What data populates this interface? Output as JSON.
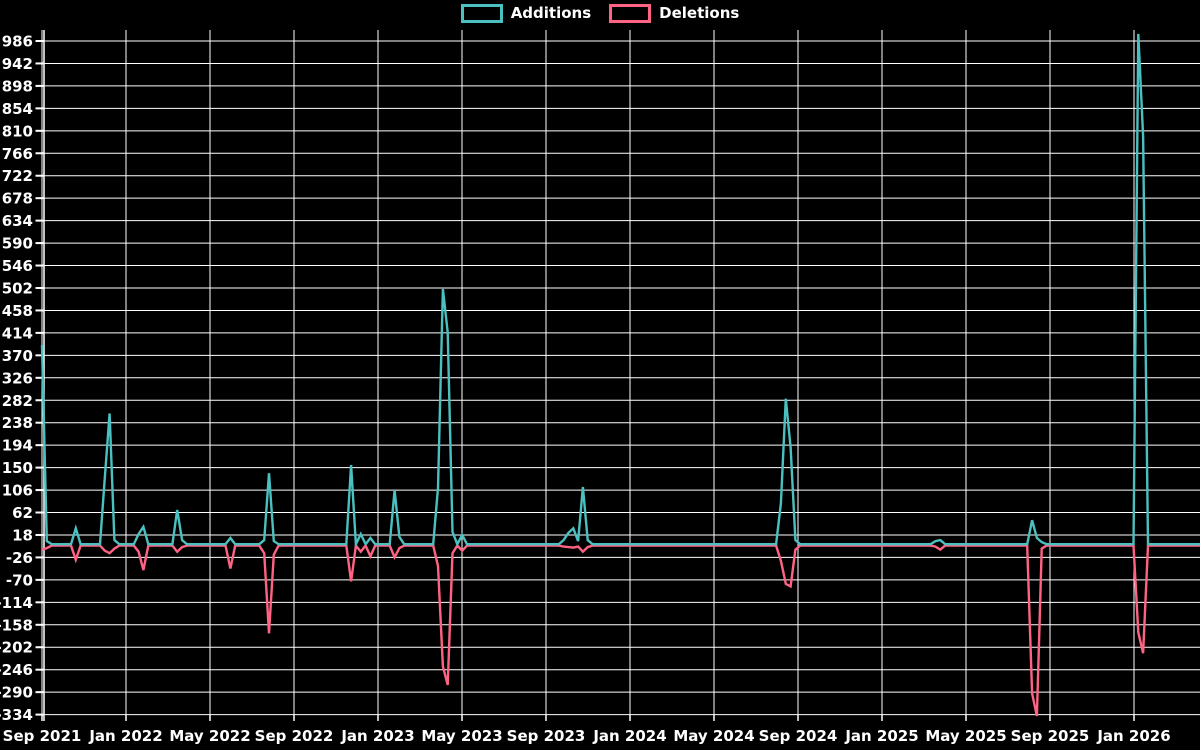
{
  "legend": {
    "items": [
      {
        "label": "Additions",
        "color": "#4bc0c0"
      },
      {
        "label": "Deletions",
        "color": "#ff6384"
      }
    ]
  },
  "chart_data": {
    "type": "line",
    "title": "",
    "xlabel": "",
    "ylabel": "",
    "legend_position": "top-center",
    "grid": true,
    "background_color": "#000000",
    "grid_color": "#ffffff",
    "text_color": "#ffffff",
    "series_colors": {
      "Additions": "#4bc0c0",
      "Deletions": "#ff6384"
    },
    "y_axis_range": [
      -334,
      986
    ],
    "y_tick_step": 44,
    "y_tick_values": [
      986,
      942,
      898,
      854,
      810,
      766,
      722,
      678,
      634,
      590,
      546,
      502,
      458,
      414,
      370,
      326,
      282,
      238,
      194,
      150,
      106,
      62,
      18,
      -26,
      -70,
      -114,
      -158,
      -202,
      -246,
      -290,
      -334
    ],
    "x_tick_labels": [
      "Sep 2021",
      "Jan 2022",
      "May 2022",
      "Sep 2022",
      "Jan 2023",
      "May 2023",
      "Sep 2023",
      "Jan 2024",
      "May 2024",
      "Sep 2024",
      "Jan 2025",
      "May 2025",
      "Sep 2025",
      "Jan 2026"
    ],
    "x_unit": "weeks",
    "weeks_total": 241,
    "default_weekly_value": 0,
    "series": [
      {
        "name": "Additions",
        "sign": "positive"
      },
      {
        "name": "Deletions",
        "sign": "negative"
      }
    ],
    "weekly_points": [
      {
        "week": 0,
        "approx_date": "2021-09-05",
        "additions": 390,
        "deletions": -8
      },
      {
        "week": 1,
        "approx_date": "2021-09-12",
        "additions": 6,
        "deletions": -5
      },
      {
        "week": 7,
        "approx_date": "2021-10-24",
        "additions": 31,
        "deletions": -28
      },
      {
        "week": 13,
        "approx_date": "2021-12-05",
        "additions": 130,
        "deletions": -10
      },
      {
        "week": 14,
        "approx_date": "2021-12-12",
        "additions": 256,
        "deletions": -15
      },
      {
        "week": 15,
        "approx_date": "2021-12-19",
        "additions": 8,
        "deletions": -6
      },
      {
        "week": 20,
        "approx_date": "2022-01-23",
        "additions": 20,
        "deletions": -12
      },
      {
        "week": 21,
        "approx_date": "2022-01-30",
        "additions": 34,
        "deletions": -48
      },
      {
        "week": 28,
        "approx_date": "2022-03-20",
        "additions": 67,
        "deletions": -12
      },
      {
        "week": 29,
        "approx_date": "2022-03-27",
        "additions": 8,
        "deletions": -3
      },
      {
        "week": 39,
        "approx_date": "2022-06-05",
        "additions": 12,
        "deletions": -45
      },
      {
        "week": 46,
        "approx_date": "2022-07-24",
        "additions": 8,
        "deletions": -15
      },
      {
        "week": 47,
        "approx_date": "2022-07-31",
        "additions": 139,
        "deletions": -172
      },
      {
        "week": 48,
        "approx_date": "2022-08-07",
        "additions": 6,
        "deletions": -18
      },
      {
        "week": 64,
        "approx_date": "2022-11-27",
        "additions": 155,
        "deletions": -70
      },
      {
        "week": 66,
        "approx_date": "2022-12-11",
        "additions": 20,
        "deletions": -12
      },
      {
        "week": 68,
        "approx_date": "2022-12-25",
        "additions": 12,
        "deletions": -21
      },
      {
        "week": 73,
        "approx_date": "2023-01-29",
        "additions": 106,
        "deletions": -23
      },
      {
        "week": 74,
        "approx_date": "2023-02-05",
        "additions": 14,
        "deletions": -5
      },
      {
        "week": 82,
        "approx_date": "2023-04-02",
        "additions": 110,
        "deletions": -40
      },
      {
        "week": 83,
        "approx_date": "2023-04-09",
        "additions": 500,
        "deletions": -237
      },
      {
        "week": 84,
        "approx_date": "2023-04-16",
        "additions": 415,
        "deletions": -273
      },
      {
        "week": 85,
        "approx_date": "2023-04-23",
        "additions": 24,
        "deletions": -15
      },
      {
        "week": 87,
        "approx_date": "2023-05-07",
        "additions": 18,
        "deletions": -10
      },
      {
        "week": 108,
        "approx_date": "2023-10-01",
        "additions": 8,
        "deletions": -2
      },
      {
        "week": 109,
        "approx_date": "2023-10-08",
        "additions": 22,
        "deletions": -3
      },
      {
        "week": 110,
        "approx_date": "2023-10-15",
        "additions": 31,
        "deletions": -4
      },
      {
        "week": 111,
        "approx_date": "2023-10-22",
        "additions": 6,
        "deletions": -2
      },
      {
        "week": 112,
        "approx_date": "2023-10-29",
        "additions": 112,
        "deletions": -12
      },
      {
        "week": 113,
        "approx_date": "2023-11-05",
        "additions": 8,
        "deletions": -3
      },
      {
        "week": 153,
        "approx_date": "2024-08-11",
        "additions": 80,
        "deletions": -30
      },
      {
        "week": 154,
        "approx_date": "2024-08-18",
        "additions": 285,
        "deletions": -75
      },
      {
        "week": 155,
        "approx_date": "2024-08-25",
        "additions": 190,
        "deletions": -80
      },
      {
        "week": 156,
        "approx_date": "2024-09-01",
        "additions": 8,
        "deletions": -8
      },
      {
        "week": 185,
        "approx_date": "2025-03-23",
        "additions": 6,
        "deletions": -2
      },
      {
        "week": 186,
        "approx_date": "2025-03-30",
        "additions": 8,
        "deletions": -8
      },
      {
        "week": 205,
        "approx_date": "2025-08-10",
        "additions": 47,
        "deletions": -290
      },
      {
        "week": 206,
        "approx_date": "2025-08-17",
        "additions": 12,
        "deletions": -334
      },
      {
        "week": 207,
        "approx_date": "2025-08-24",
        "additions": 4,
        "deletions": -6
      },
      {
        "week": 227,
        "approx_date": "2026-01-11",
        "additions": 1000,
        "deletions": -170
      },
      {
        "week": 228,
        "approx_date": "2026-01-18",
        "additions": 800,
        "deletions": -211
      }
    ]
  }
}
